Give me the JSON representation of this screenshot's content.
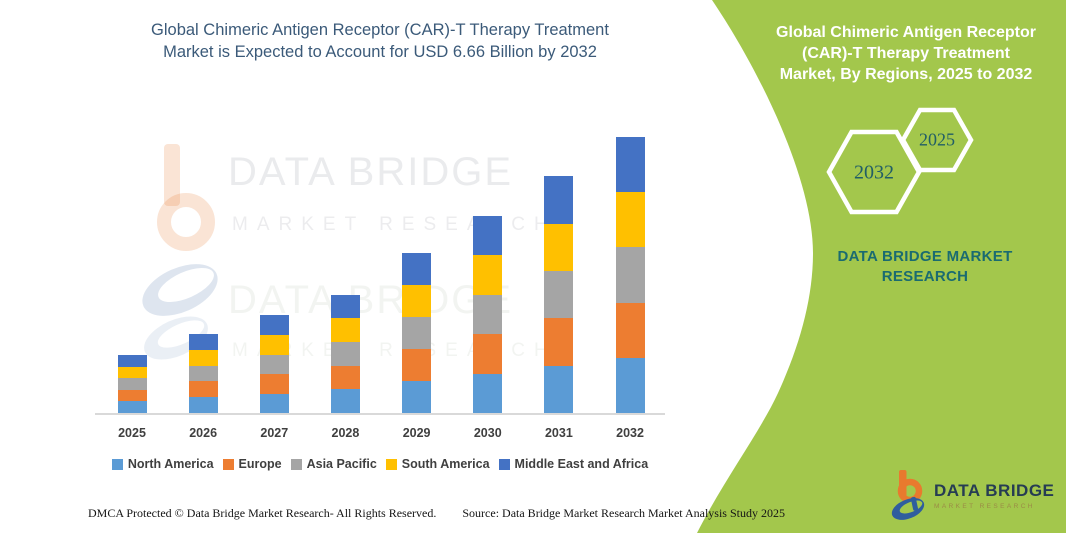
{
  "header": {
    "title_line1": "Global Chimeric Antigen Receptor (CAR)-T Therapy Treatment",
    "title_line2": "Market is Expected to Account for USD 6.66 Billion by 2032"
  },
  "panel": {
    "title_lines": [
      "Global Chimeric Antigen Receptor",
      "(CAR)-T Therapy Treatment",
      "Market, By Regions, 2025 to 2032"
    ],
    "hex_large": "2032",
    "hex_small": "2025",
    "brand": "DATA BRIDGE MARKET RESEARCH"
  },
  "watermark": {
    "line1": "DATA BRIDGE",
    "line2": "MARKET RESEARCH"
  },
  "logo": {
    "name": "DATA BRIDGE",
    "tagline": "MARKET RESEARCH"
  },
  "footer": {
    "left": "DMCA Protected © Data Bridge Market Research- All Rights Reserved.",
    "right": "Source: Data Bridge Market Research Market Analysis Study 2025"
  },
  "chart_data": {
    "type": "bar",
    "stacked": true,
    "title": "Global Chimeric Antigen Receptor (CAR)-T Therapy Treatment Market, By Regions",
    "unit": "USD Billion",
    "categories": [
      "2025",
      "2026",
      "2027",
      "2028",
      "2029",
      "2030",
      "2031",
      "2032"
    ],
    "series": [
      {
        "name": "North America",
        "color": "#5b9bd5",
        "values": [
          0.28,
          0.38,
          0.47,
          0.57,
          0.77,
          0.95,
          1.14,
          1.33
        ]
      },
      {
        "name": "Europe",
        "color": "#ed7d31",
        "values": [
          0.28,
          0.38,
          0.47,
          0.57,
          0.77,
          0.95,
          1.14,
          1.33
        ]
      },
      {
        "name": "Asia Pacific",
        "color": "#a5a5a5",
        "values": [
          0.28,
          0.38,
          0.47,
          0.57,
          0.77,
          0.95,
          1.14,
          1.33
        ]
      },
      {
        "name": "South America",
        "color": "#ffc000",
        "values": [
          0.28,
          0.38,
          0.47,
          0.57,
          0.77,
          0.95,
          1.14,
          1.33
        ]
      },
      {
        "name": "Middle East and Africa",
        "color": "#4472c4",
        "values": [
          0.28,
          0.38,
          0.47,
          0.57,
          0.77,
          0.95,
          1.14,
          1.34
        ]
      }
    ],
    "totals": [
      1.4,
      1.9,
      2.35,
      2.85,
      3.85,
      4.75,
      5.7,
      6.66
    ],
    "ylim": [
      0,
      7
    ],
    "grid": false,
    "legend_position": "bottom",
    "notes": "Per-region values estimated from stacked bar segment heights; 2032 total stated as USD 6.66 Billion."
  },
  "colors": {
    "panel_green": "#a3c74c",
    "heading_navy": "#3b5a79",
    "teal_text": "#1a6b70",
    "axis_label": "#3f3f3f",
    "logo_orange": "#e87a2e",
    "logo_blue": "#2f5e9e"
  }
}
